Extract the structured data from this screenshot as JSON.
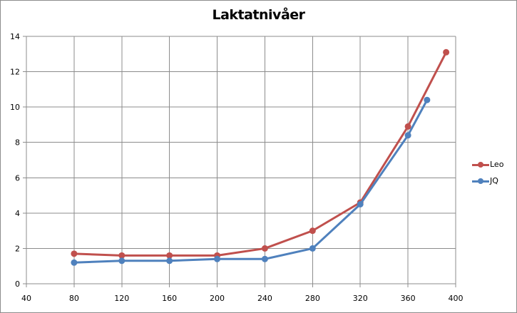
{
  "chart_data": {
    "type": "line",
    "title": "Laktatnivåer",
    "xlabel": "",
    "ylabel": "",
    "xlim": [
      40,
      400
    ],
    "ylim": [
      0,
      14
    ],
    "x_ticks": [
      40,
      80,
      120,
      160,
      200,
      240,
      280,
      320,
      360,
      400
    ],
    "y_ticks": [
      0,
      2,
      4,
      6,
      8,
      10,
      12,
      14
    ],
    "grid": true,
    "legend_position": "right",
    "series": [
      {
        "name": "Leo",
        "color": "#C0504D",
        "x": [
          80,
          120,
          160,
          200,
          240,
          280,
          320,
          360,
          392
        ],
        "values": [
          1.7,
          1.6,
          1.6,
          1.6,
          2.0,
          3.0,
          4.6,
          8.9,
          13.1
        ]
      },
      {
        "name": "JQ",
        "color": "#4F81BD",
        "x": [
          80,
          120,
          160,
          200,
          240,
          280,
          320,
          360,
          376
        ],
        "values": [
          1.2,
          1.3,
          1.3,
          1.4,
          1.4,
          2.0,
          4.5,
          8.4,
          10.4
        ]
      }
    ]
  },
  "legend": {
    "items": [
      {
        "label": "Leo",
        "color": "#C0504D"
      },
      {
        "label": "JQ",
        "color": "#4F81BD"
      }
    ]
  }
}
